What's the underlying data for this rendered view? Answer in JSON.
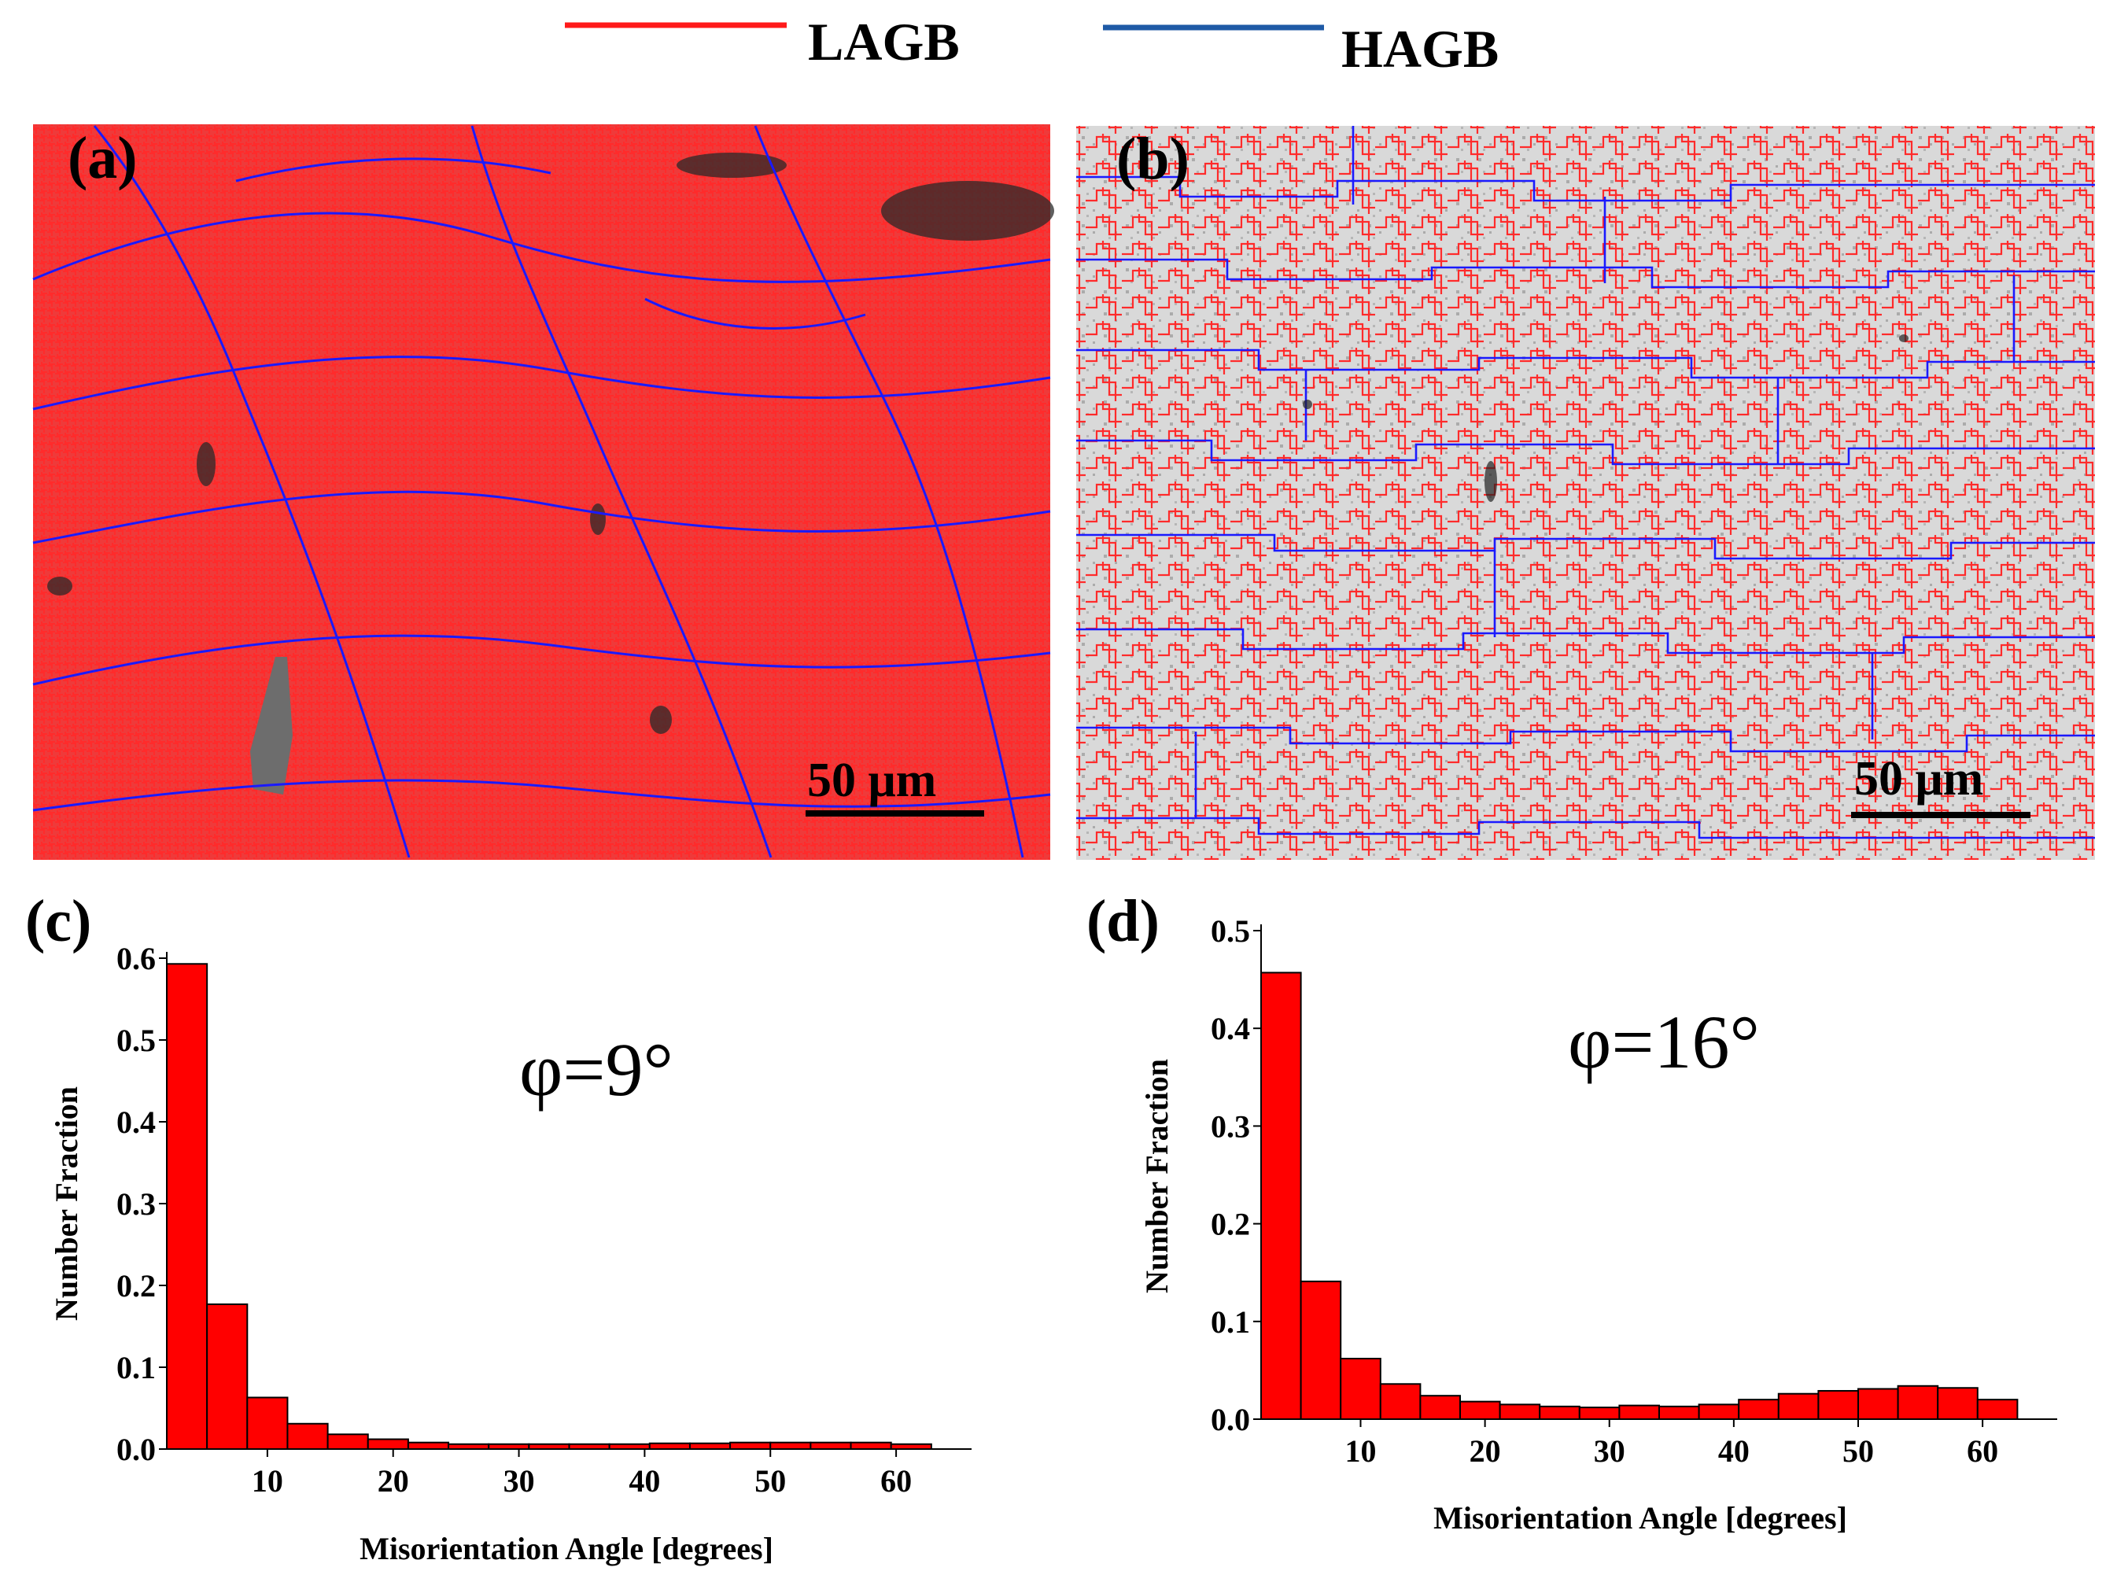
{
  "legend": {
    "items": [
      {
        "label": "LAGB",
        "color": "#ff1a1a"
      },
      {
        "label": "HAGB",
        "color": "#1f5aa6"
      }
    ]
  },
  "maps": [
    {
      "panel_label": "(a)",
      "scale_bar": "50 μm",
      "background": "#ef3a3a",
      "gb_low": "#ff2222",
      "gb_high": "#1a1aff"
    },
    {
      "panel_label": "(b)",
      "scale_bar": "50 μm",
      "background": "#d9d9d9",
      "gb_low": "#ff2222",
      "gb_high": "#1a1aff"
    }
  ],
  "chart_data": [
    {
      "type": "bar",
      "panel_label": "(c)",
      "annotation": "φ=9°",
      "xlabel": "Misorientation Angle [degrees]",
      "ylabel": "Number Fraction",
      "xlim": [
        2,
        66
      ],
      "ylim": [
        0,
        0.6
      ],
      "xticks": [
        10,
        20,
        30,
        40,
        50,
        60
      ],
      "yticks": [
        0.0,
        0.1,
        0.2,
        0.3,
        0.4,
        0.5,
        0.6
      ],
      "ytick_labels": [
        "0.0",
        "0.1",
        "0.2",
        "0.3",
        "0.4",
        "0.5",
        "0.6"
      ],
      "bin_edges": [
        2,
        5.2,
        8.4,
        11.6,
        14.8,
        18,
        21.2,
        24.4,
        27.6,
        30.8,
        34,
        37.2,
        40.4,
        43.6,
        46.8,
        50,
        53.2,
        56.4,
        59.6,
        62.8
      ],
      "values": [
        0.593,
        0.177,
        0.063,
        0.031,
        0.018,
        0.012,
        0.008,
        0.006,
        0.006,
        0.006,
        0.006,
        0.006,
        0.007,
        0.007,
        0.008,
        0.008,
        0.008,
        0.008,
        0.006
      ],
      "bar_color": "#ff0000"
    },
    {
      "type": "bar",
      "panel_label": "(d)",
      "annotation": "φ=16°",
      "xlabel": "Misorientation Angle [degrees]",
      "ylabel": "Number Fraction",
      "xlim": [
        2,
        66
      ],
      "ylim": [
        0,
        0.5
      ],
      "xticks": [
        10,
        20,
        30,
        40,
        50,
        60
      ],
      "yticks": [
        0.0,
        0.1,
        0.2,
        0.3,
        0.4,
        0.5
      ],
      "ytick_labels": [
        "0.0",
        "0.1",
        "0.2",
        "0.3",
        "0.4",
        "0.5"
      ],
      "bin_edges": [
        2,
        5.2,
        8.4,
        11.6,
        14.8,
        18,
        21.2,
        24.4,
        27.6,
        30.8,
        34,
        37.2,
        40.4,
        43.6,
        46.8,
        50,
        53.2,
        56.4,
        59.6,
        62.8
      ],
      "values": [
        0.457,
        0.141,
        0.062,
        0.036,
        0.024,
        0.018,
        0.015,
        0.013,
        0.012,
        0.014,
        0.013,
        0.015,
        0.02,
        0.026,
        0.029,
        0.031,
        0.034,
        0.032,
        0.02
      ],
      "bar_color": "#ff0000"
    }
  ]
}
